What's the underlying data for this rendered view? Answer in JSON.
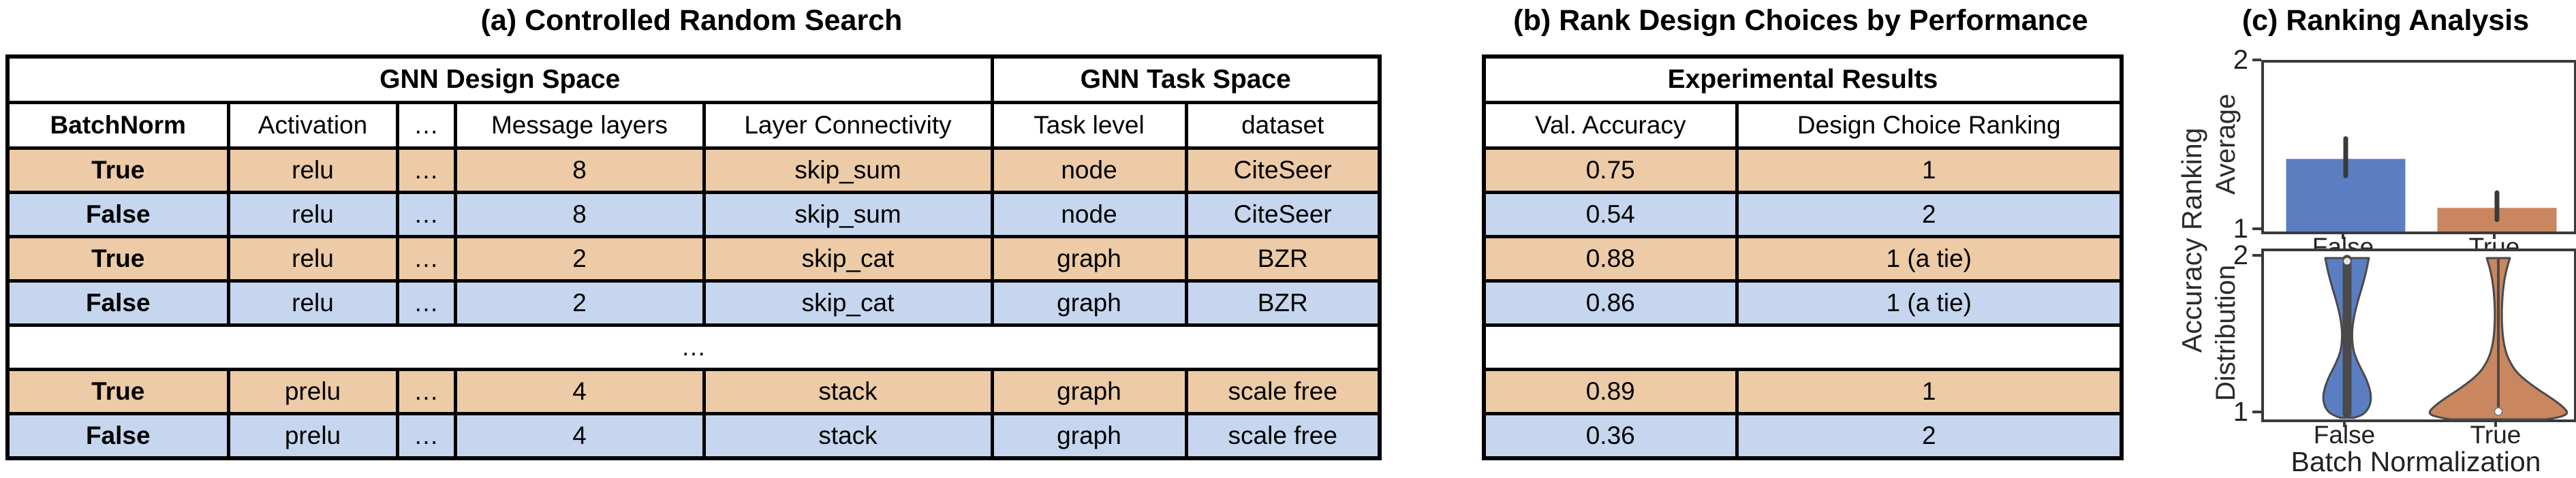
{
  "colors": {
    "row_orange": "#eccba6",
    "row_blue": "#c5d6ee",
    "bar_blue": "#5b7ec3",
    "bar_orange": "#c9865f",
    "axis": "#3a3a3a",
    "violin_outline": "#4a4a4a",
    "error_bar": "#3a3a3a"
  },
  "panel_a": {
    "title": "(a) Controlled Random Search",
    "table": {
      "group_headers": [
        {
          "label": "GNN Design Space",
          "span": 5
        },
        {
          "label": "GNN Task Space",
          "span": 2
        }
      ],
      "columns": [
        "BatchNorm",
        "Activation",
        "…",
        "Message layers",
        "Layer Connectivity",
        "Task level",
        "dataset"
      ],
      "bold_column": 0,
      "rows": [
        {
          "color": "orange",
          "cells": [
            "True",
            "relu",
            "…",
            "8",
            "skip_sum",
            "node",
            "CiteSeer"
          ]
        },
        {
          "color": "blue",
          "cells": [
            "False",
            "relu",
            "…",
            "8",
            "skip_sum",
            "node",
            "CiteSeer"
          ]
        },
        {
          "color": "orange",
          "cells": [
            "True",
            "relu",
            "…",
            "2",
            "skip_cat",
            "graph",
            "BZR"
          ]
        },
        {
          "color": "blue",
          "cells": [
            "False",
            "relu",
            "…",
            "2",
            "skip_cat",
            "graph",
            "BZR"
          ]
        },
        {
          "color": "white",
          "ellipsis": true,
          "cells": [
            "…"
          ]
        },
        {
          "color": "orange",
          "cells": [
            "True",
            "prelu",
            "…",
            "4",
            "stack",
            "graph",
            "scale free"
          ]
        },
        {
          "color": "blue",
          "cells": [
            "False",
            "prelu",
            "…",
            "4",
            "stack",
            "graph",
            "scale free"
          ]
        }
      ]
    }
  },
  "panel_b": {
    "title": "(b) Rank Design Choices by Performance",
    "table": {
      "group_headers": [
        {
          "label": "Experimental Results",
          "span": 2
        }
      ],
      "columns": [
        "Val. Accuracy",
        "Design Choice Ranking"
      ],
      "bold_column": null,
      "rows": [
        {
          "color": "orange",
          "cells": [
            "0.75",
            "1"
          ]
        },
        {
          "color": "blue",
          "cells": [
            "0.54",
            "2"
          ]
        },
        {
          "color": "orange",
          "cells": [
            "0.88",
            "1 (a tie)"
          ]
        },
        {
          "color": "blue",
          "cells": [
            "0.86",
            "1 (a tie)"
          ]
        },
        {
          "color": "white",
          "ellipsis": true,
          "cells": [
            ""
          ]
        },
        {
          "color": "orange",
          "cells": [
            "0.89",
            "1"
          ]
        },
        {
          "color": "blue",
          "cells": [
            "0.36",
            "2"
          ]
        }
      ]
    }
  },
  "panel_c": {
    "title": "(c) Ranking Analysis",
    "shared_ylabel": "Accuracy Ranking"
  },
  "chart_data": [
    {
      "type": "bar",
      "subplot": "top",
      "ylabel": "Average",
      "categories": [
        "False",
        "True"
      ],
      "values": [
        1.43,
        1.14
      ],
      "error_low": [
        1.33,
        1.07
      ],
      "error_high": [
        1.55,
        1.23
      ],
      "ylim": [
        1,
        2
      ],
      "yticks": [
        "1",
        "2"
      ],
      "bar_colors": [
        "#5b7ec3",
        "#c9865f"
      ],
      "grid": false,
      "legend": "none"
    },
    {
      "type": "violin",
      "subplot": "bottom",
      "ylabel": "Distribution",
      "xlabel": "Batch Normalization",
      "categories": [
        "False",
        "True"
      ],
      "ylim": [
        1,
        2
      ],
      "yticks": [
        "1",
        "2"
      ],
      "violin_colors": [
        "#5b7ec3",
        "#c9865f"
      ],
      "summary": [
        {
          "category": "False",
          "distribution": "bimodal: mass near rank 1 and rank 2 with a narrow waist near 1.5",
          "inner": "thick dark bar spanning ranks 1 to 2 with median dot near rank 2"
        },
        {
          "category": "True",
          "distribution": "unimodal: mass concentrated near rank 1 with a thin tail reaching rank 2",
          "inner": "thin dark line spanning ranks 1 to 2 with white median dot near rank 1"
        }
      ],
      "violin_profiles": [
        {
          "category": "False",
          "color_key": 0,
          "profile_rank_halfwidth": [
            [
              2.0,
              32
            ],
            [
              1.91,
              28
            ],
            [
              1.8,
              21
            ],
            [
              1.7,
              14
            ],
            [
              1.59,
              8.5
            ],
            [
              1.5,
              7
            ],
            [
              1.41,
              9
            ],
            [
              1.33,
              16
            ],
            [
              1.24,
              27
            ],
            [
              1.17,
              33
            ],
            [
              1.11,
              35.5
            ],
            [
              1.05,
              33
            ],
            [
              1.0,
              24
            ],
            [
              0.98,
              10
            ]
          ],
          "inner": {
            "style": "thick-bar",
            "bar_halfwidth": 6.5,
            "median_rank": 1.98
          }
        },
        {
          "category": "True",
          "color_key": 1,
          "profile_rank_halfwidth": [
            [
              2.0,
              17
            ],
            [
              1.93,
              12
            ],
            [
              1.84,
              8
            ],
            [
              1.73,
              5.5
            ],
            [
              1.62,
              5
            ],
            [
              1.52,
              6
            ],
            [
              1.43,
              9
            ],
            [
              1.35,
              15
            ],
            [
              1.26,
              28
            ],
            [
              1.17,
              55
            ],
            [
              1.1,
              80
            ],
            [
              1.05,
              95
            ],
            [
              1.01,
              103
            ],
            [
              0.985,
              92
            ],
            [
              0.97,
              70
            ]
          ],
          "inner": {
            "style": "thin-line",
            "bar_halfwidth": 2,
            "median_rank": 1.02
          }
        }
      ]
    }
  ]
}
